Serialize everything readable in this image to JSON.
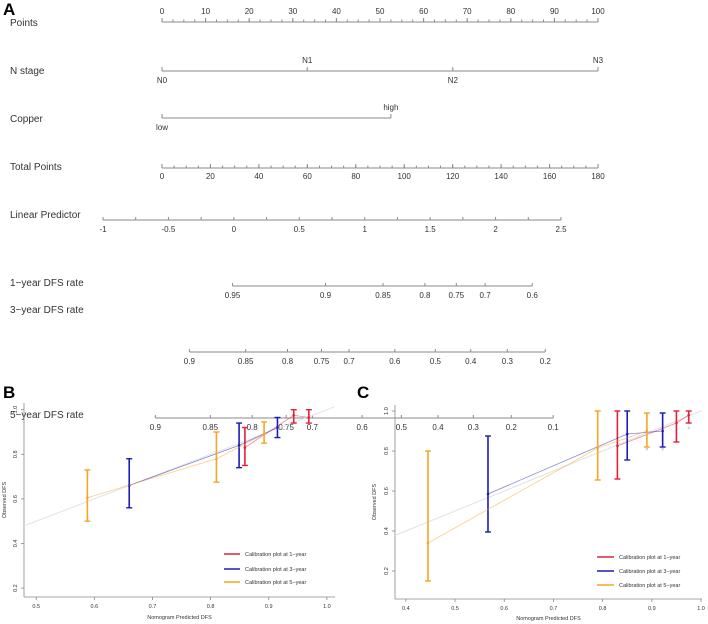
{
  "panels": {
    "a": "A",
    "b": "B",
    "c": "C"
  },
  "chart_data": [
    {
      "type": "nomogram",
      "axes": [
        {
          "label": "Points",
          "kind": "points",
          "ticks": [
            0,
            10,
            20,
            30,
            40,
            50,
            60,
            70,
            80,
            90,
            100
          ],
          "minor_step": 2.5
        },
        {
          "label": "N stage",
          "kind": "factor",
          "levels": [
            {
              "name": "N0",
              "points": 0
            },
            {
              "name": "N1",
              "points": 33.3
            },
            {
              "name": "N2",
              "points": 66.7
            },
            {
              "name": "N3",
              "points": 100
            }
          ]
        },
        {
          "label": "Copper",
          "kind": "factor",
          "levels": [
            {
              "name": "low",
              "points": 0
            },
            {
              "name": "high",
              "points": 52.5
            }
          ]
        },
        {
          "label": "Total Points",
          "kind": "total",
          "ticks": [
            0,
            20,
            40,
            60,
            80,
            100,
            120,
            140,
            160,
            180
          ],
          "minor_step": 5
        },
        {
          "label": "Linear Predictor",
          "kind": "lp",
          "ticks": [
            "-1",
            "-0.5",
            "0",
            "0.5",
            "1",
            "1.5",
            "2",
            "2.5"
          ],
          "minor_step": 0.25
        },
        {
          "label": "1−year DFS rate",
          "kind": "rate",
          "ticks": [
            {
              "label": "0.95",
              "lp": -0.01
            },
            {
              "label": "0.9",
              "lp": 0.7
            },
            {
              "label": "0.85",
              "lp": 1.14
            },
            {
              "label": "0.8",
              "lp": 1.46
            },
            {
              "label": "0.75",
              "lp": 1.7
            },
            {
              "label": "0.7",
              "lp": 1.92
            },
            {
              "label": "0.6",
              "lp": 2.28
            }
          ]
        },
        {
          "label": "3−year DFS rate",
          "kind": "rate",
          "ticks": [
            {
              "label": "0.9",
              "lp": -0.34
            },
            {
              "label": "0.85",
              "lp": 0.09
            },
            {
              "label": "0.8",
              "lp": 0.41
            },
            {
              "label": "0.75",
              "lp": 0.67
            },
            {
              "label": "0.7",
              "lp": 0.88
            },
            {
              "label": "0.6",
              "lp": 1.23
            },
            {
              "label": "0.5",
              "lp": 1.54
            },
            {
              "label": "0.4",
              "lp": 1.81
            },
            {
              "label": "0.3",
              "lp": 2.09
            },
            {
              "label": "0.2",
              "lp": 2.38
            }
          ]
        },
        {
          "label": "5−year DFS rate",
          "kind": "rate",
          "ticks": [
            {
              "label": "0.9",
              "lp": -0.6
            },
            {
              "label": "0.85",
              "lp": -0.18
            },
            {
              "label": "0.8",
              "lp": 0.14
            },
            {
              "label": "0.75",
              "lp": 0.4
            },
            {
              "label": "0.7",
              "lp": 0.6
            },
            {
              "label": "0.6",
              "lp": 0.98
            },
            {
              "label": "0.5",
              "lp": 1.28
            },
            {
              "label": "0.4",
              "lp": 1.56
            },
            {
              "label": "0.3",
              "lp": 1.83
            },
            {
              "label": "0.2",
              "lp": 2.12
            },
            {
              "label": "0.1",
              "lp": 2.44
            }
          ]
        }
      ]
    },
    {
      "type": "line",
      "title": "",
      "xlabel": "Nomogram Predicted DFS",
      "ylabel": "Observed DFS",
      "xlim": [
        0.479,
        1.014
      ],
      "ylim": [
        0.16,
        1.03
      ],
      "xticks": [
        "0.5",
        "0.6",
        "0.7",
        "0.8",
        "0.9",
        "1.0"
      ],
      "yticks": [
        "0.2",
        "0.4",
        "0.6",
        "0.8",
        "1.0"
      ],
      "ideal_line": true,
      "legend": "bottom-right",
      "series": [
        {
          "name": "Calibration plot at 1−year",
          "color": "#e3203a",
          "points": [
            {
              "x": 0.859,
              "y": 0.83,
              "lo": 0.75,
              "hi": 0.92
            },
            {
              "x": 0.943,
              "y": 0.975,
              "lo": 0.94,
              "hi": 1.0
            },
            {
              "x": 0.969,
              "y": 0.965,
              "lo": 0.94,
              "hi": 1.0
            }
          ]
        },
        {
          "name": "Calibration plot at 3−year",
          "color": "#1c1cb4",
          "points": [
            {
              "x": 0.66,
              "y": 0.66,
              "lo": 0.56,
              "hi": 0.78
            },
            {
              "x": 0.849,
              "y": 0.84,
              "lo": 0.74,
              "hi": 0.94
            },
            {
              "x": 0.915,
              "y": 0.92,
              "lo": 0.875,
              "hi": 0.965
            }
          ]
        },
        {
          "name": "Calibration plot at 5−year",
          "color": "#f5a623",
          "points": [
            {
              "x": 0.588,
              "y": 0.605,
              "lo": 0.5,
              "hi": 0.73
            },
            {
              "x": 0.81,
              "y": 0.78,
              "lo": 0.675,
              "hi": 0.9
            },
            {
              "x": 0.892,
              "y": 0.89,
              "lo": 0.85,
              "hi": 0.945
            }
          ]
        }
      ]
    },
    {
      "type": "line",
      "title": "",
      "xlabel": "Nomogram Predicted DFS",
      "ylabel": "Observed DFS",
      "xlim": [
        0.378,
        1.002
      ],
      "ylim": [
        0.06,
        1.03
      ],
      "xticks": [
        "0.4",
        "0.5",
        "0.6",
        "0.7",
        "0.8",
        "0.9",
        "1.0"
      ],
      "yticks": [
        "0.2",
        "0.4",
        "0.6",
        "0.8",
        "1.0"
      ],
      "ideal_line": true,
      "legend": "bottom-right",
      "series": [
        {
          "name": "Calibration plot at 1−year",
          "color": "#e3203a",
          "points": [
            {
              "x": 0.83,
              "y": 0.825,
              "lo": 0.66,
              "hi": 1.0
            },
            {
              "x": 0.95,
              "y": 0.94,
              "lo": 0.845,
              "hi": 1.0
            },
            {
              "x": 0.975,
              "y": 0.98,
              "lo": 0.94,
              "hi": 1.0
            }
          ]
        },
        {
          "name": "Calibration plot at 3−year",
          "color": "#1c1cb4",
          "points": [
            {
              "x": 0.567,
              "y": 0.585,
              "lo": 0.395,
              "hi": 0.875
            },
            {
              "x": 0.85,
              "y": 0.885,
              "lo": 0.755,
              "hi": 1.0
            },
            {
              "x": 0.922,
              "y": 0.9,
              "lo": 0.82,
              "hi": 0.99
            }
          ]
        },
        {
          "name": "Calibration plot at 5−year",
          "color": "#f5a623",
          "points": [
            {
              "x": 0.445,
              "y": 0.34,
              "lo": 0.15,
              "hi": 0.8
            },
            {
              "x": 0.79,
              "y": 0.815,
              "lo": 0.655,
              "hi": 1.0
            },
            {
              "x": 0.89,
              "y": 0.9,
              "lo": 0.82,
              "hi": 0.99
            }
          ]
        }
      ],
      "corrected_marks": [
        {
          "x": 0.89,
          "y": 0.81
        },
        {
          "x": 0.922,
          "y": 0.81
        },
        {
          "x": 0.975,
          "y": 0.915
        }
      ]
    }
  ]
}
